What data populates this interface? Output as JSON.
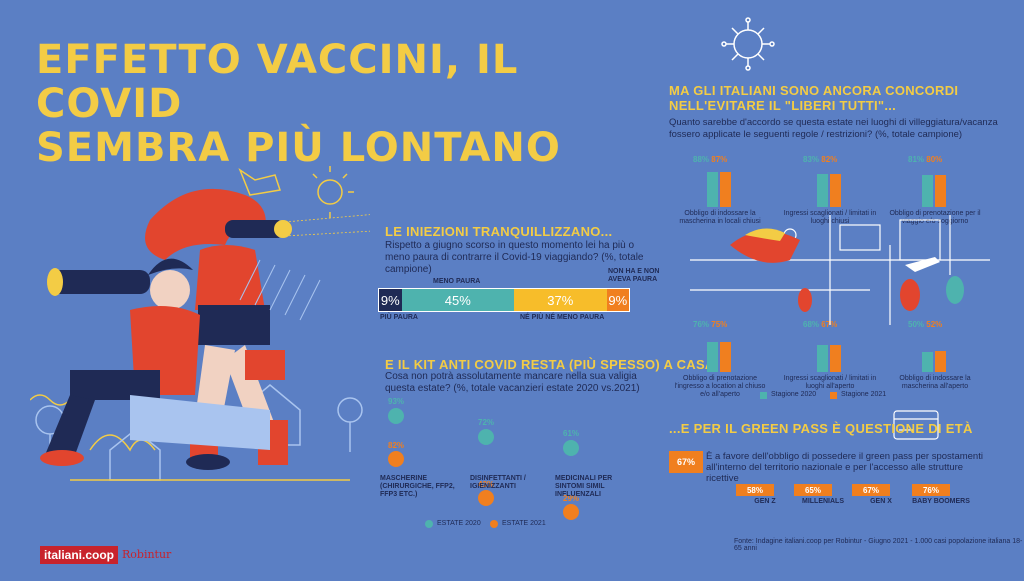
{
  "title": "EFFETTO VACCINI, IL COVID\nSEMBRA PIÙ LONTANO",
  "colors": {
    "bg": "#5b7fc4",
    "yellow": "#f3cc45",
    "orange": "#f07f1f",
    "teal": "#4eb3ae",
    "navy": "#1f2a55"
  },
  "injections": {
    "heading": "LE INIEZIONI TRANQUILLIZZANO...",
    "question": "Rispetto a giugno scorso in questo momento lei ha più o meno paura di contrarre il Covid-19 viaggiando? (%, totale campione)",
    "labels": {
      "meno": "MENO PAURA",
      "nonha": "NON HA E NON AVEVA PAURA",
      "piu": "PIÙ PAURA",
      "ne": "NÉ PIÙ NÉ MENO PAURA"
    }
  },
  "kit": {
    "heading": "E IL KIT ANTI COVID RESTA (PIÙ SPESSO) A CASA",
    "question": "Cosa non potrà assolutamente mancare nella sua valigia questa estate? (%, totale vacanzieri estate 2020 vs.2021)",
    "legend_2020": "ESTATE 2020",
    "legend_2021": "ESTATE 2021"
  },
  "rules": {
    "heading": "MA GLI ITALIANI SONO ANCORA CONCORDI NELL'EVITARE IL \"LIBERI TUTTI\"...",
    "question": "Quanto sarebbe d'accordo se questa estate nei luoghi di villeggiatura/vacanza fossero applicate le seguenti regole / restrizioni? (%, totale campione)",
    "legend_2020": "Stagione 2020",
    "legend_2021": "Stagione 2021"
  },
  "greenpass": {
    "heading": "...E PER IL GREEN PASS È QUESTIONE DI ETÀ",
    "total": "67%",
    "text": "È a favore dell'obbligo di possedere il green pass per spostamenti all'interno del territorio nazionale e per l'accesso alle strutture ricettive",
    "groups": [
      {
        "value": "58%",
        "label": "GEN Z"
      },
      {
        "value": "65%",
        "label": "MILLENIALS"
      },
      {
        "value": "67%",
        "label": "GEN X"
      },
      {
        "value": "76%",
        "label": "BABY BOOMERS"
      }
    ]
  },
  "source": "Fonte: Indagine italiani.coop per Robintur - Giugno 2021 - 1.000 casi popolazione italiana 18-65 anni",
  "logo1": "italiani.coop",
  "logo2": "Robintur",
  "chart_data": [
    {
      "type": "bar",
      "title": "LE INIEZIONI TRANQUILLIZZANO...",
      "stacked": true,
      "categories": [
        "PIÙ PAURA",
        "MENO PAURA",
        "NÉ PIÙ NÉ MENO PAURA",
        "NON HA E NON AVEVA PAURA"
      ],
      "values": [
        9,
        45,
        37,
        9
      ],
      "colors": [
        "#1f2a55",
        "#4eb3ae",
        "#f7bd2a",
        "#f07f1f"
      ]
    },
    {
      "type": "bar",
      "title": "E IL KIT ANTI COVID RESTA (PIÙ SPESSO) A CASA",
      "categories": [
        "MASCHERINE (CHIRURGICHE, FFP2, FFP3 ETC.)",
        "DISINFETTANTI / IGIENIZZANTI",
        "MEDICINALI PER SINTOMI SIMIL INFLUENZALI"
      ],
      "series": [
        {
          "name": "ESTATE 2020",
          "values": [
            93,
            72,
            61
          ]
        },
        {
          "name": "ESTATE 2021",
          "values": [
            82,
            43,
            29
          ]
        }
      ]
    },
    {
      "type": "bar",
      "title": "MA GLI ITALIANI SONO ANCORA CONCORDI NELL'EVITARE IL \"LIBERI TUTTI\"...",
      "categories": [
        "Obbligo di indossare la mascherina in locali chiusi",
        "Ingressi scaglionati / limitati in luoghi chiusi",
        "Obbligo di prenotazione per il viaggio e/o soggiorno",
        "Obbligo di prenotazione l'ingresso a location al chiuso e/o all'aperto",
        "Ingressi scaglionati / limitati in luoghi all'aperto",
        "Obbligo di indossare la mascherina all'aperto"
      ],
      "series": [
        {
          "name": "Stagione 2020",
          "values": [
            88,
            83,
            81,
            76,
            68,
            50
          ]
        },
        {
          "name": "Stagione 2021",
          "values": [
            87,
            82,
            80,
            75,
            67,
            52
          ]
        }
      ],
      "ylim": [
        0,
        100
      ]
    },
    {
      "type": "bar",
      "title": "...E PER IL GREEN PASS È QUESTIONE DI ETÀ",
      "categories": [
        "GEN Z",
        "MILLENIALS",
        "GEN X",
        "BABY BOOMERS"
      ],
      "values": [
        58,
        65,
        67,
        76
      ]
    }
  ]
}
